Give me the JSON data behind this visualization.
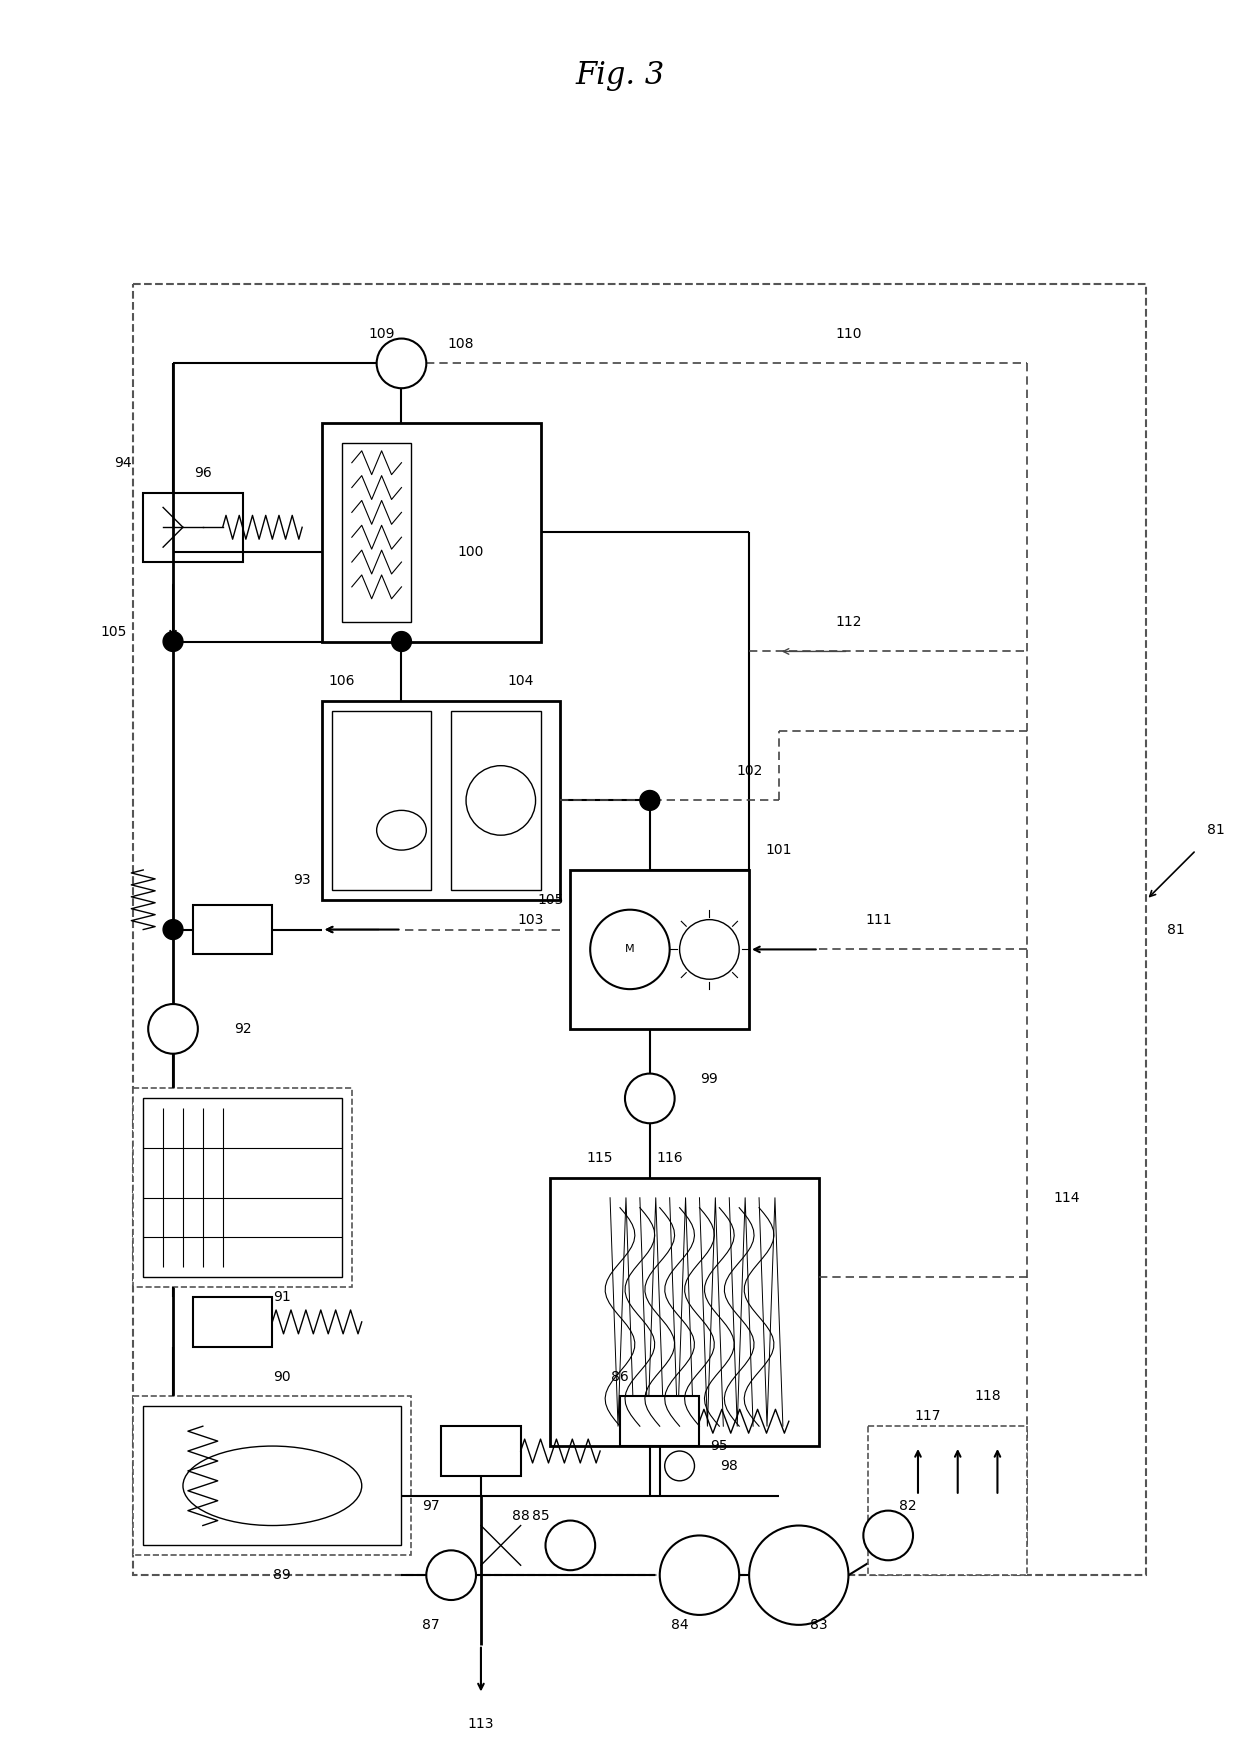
{
  "title": "Fig. 3",
  "bg": "#ffffff",
  "lc": "#000000",
  "fig_w": 12.4,
  "fig_h": 17.39,
  "dpi": 100
}
